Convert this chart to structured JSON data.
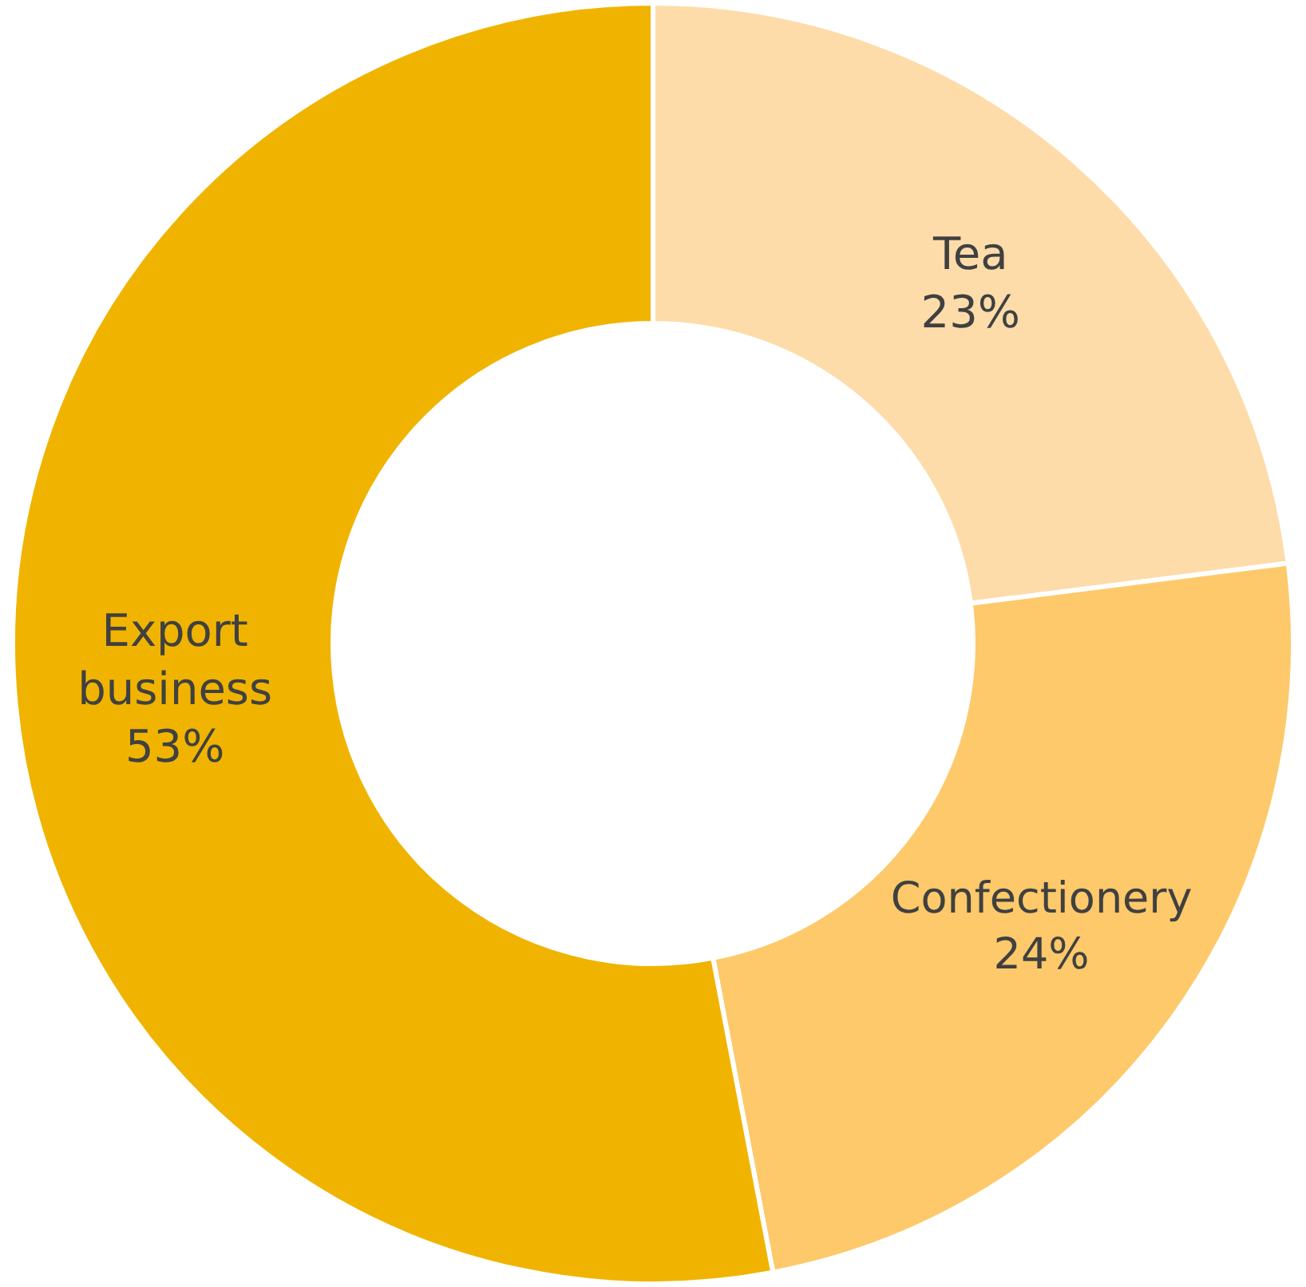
{
  "chart_data": {
    "type": "donut",
    "categories": [
      "Tea",
      "Confectionery",
      "Export business"
    ],
    "values": [
      23,
      24,
      53
    ],
    "value_labels": [
      "23%",
      "24%",
      "53%"
    ],
    "colors": [
      "#fddcaa",
      "#fdc96a",
      "#f0b400"
    ],
    "legend": false
  }
}
